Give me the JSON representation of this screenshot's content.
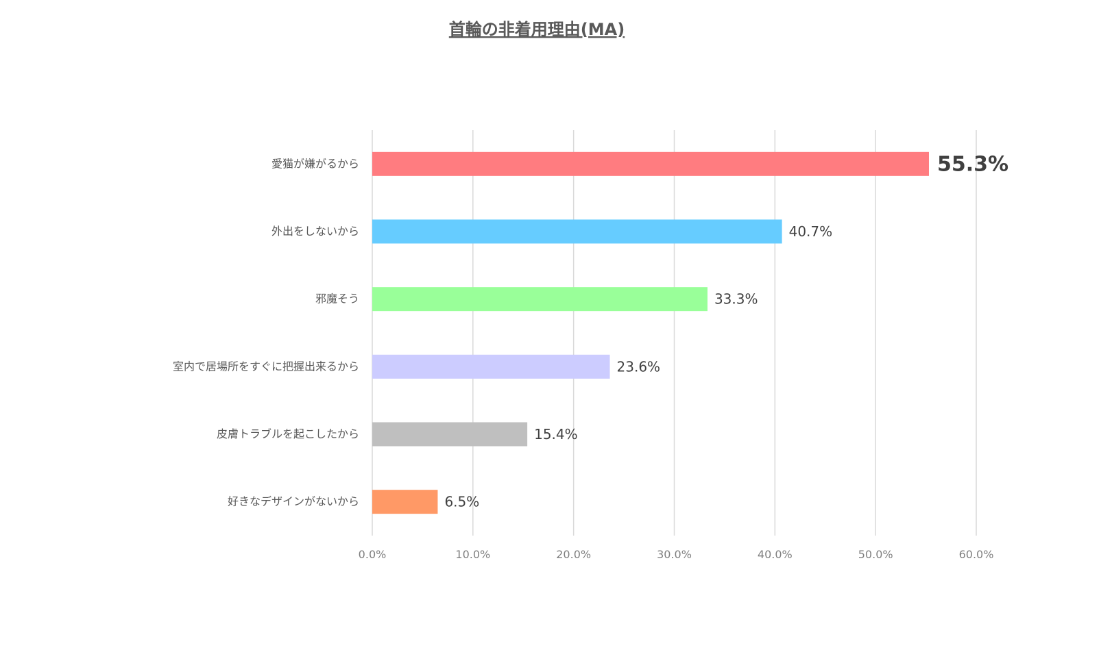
{
  "chart_data": {
    "type": "bar",
    "orientation": "horizontal",
    "title": "首輪の非着用理由(MA)",
    "categories": [
      "愛猫が嫌がるから",
      "外出をしないから",
      "邪魔そう",
      "室内で居場所をすぐに把握出来るから",
      "皮膚トラブルを起こしたから",
      "好きなデザインがないから"
    ],
    "values": [
      55.3,
      40.7,
      33.3,
      23.6,
      15.4,
      6.5
    ],
    "data_labels": [
      "55.3%",
      "40.7%",
      "33.3%",
      "23.6%",
      "15.4%",
      "6.5%"
    ],
    "colors": [
      "#ff7c80",
      "#66ccff",
      "#99ff99",
      "#ccccff",
      "#bfbfbf",
      "#ff9966"
    ],
    "xlim": [
      0,
      60
    ],
    "xticks": [
      0,
      10,
      20,
      30,
      40,
      50,
      60
    ],
    "xtick_labels": [
      "0.0%",
      "10.0%",
      "20.0%",
      "30.0%",
      "40.0%",
      "50.0%",
      "60.0%"
    ],
    "grid": "vertical",
    "xlabel": "",
    "ylabel": "",
    "legend": "none"
  }
}
